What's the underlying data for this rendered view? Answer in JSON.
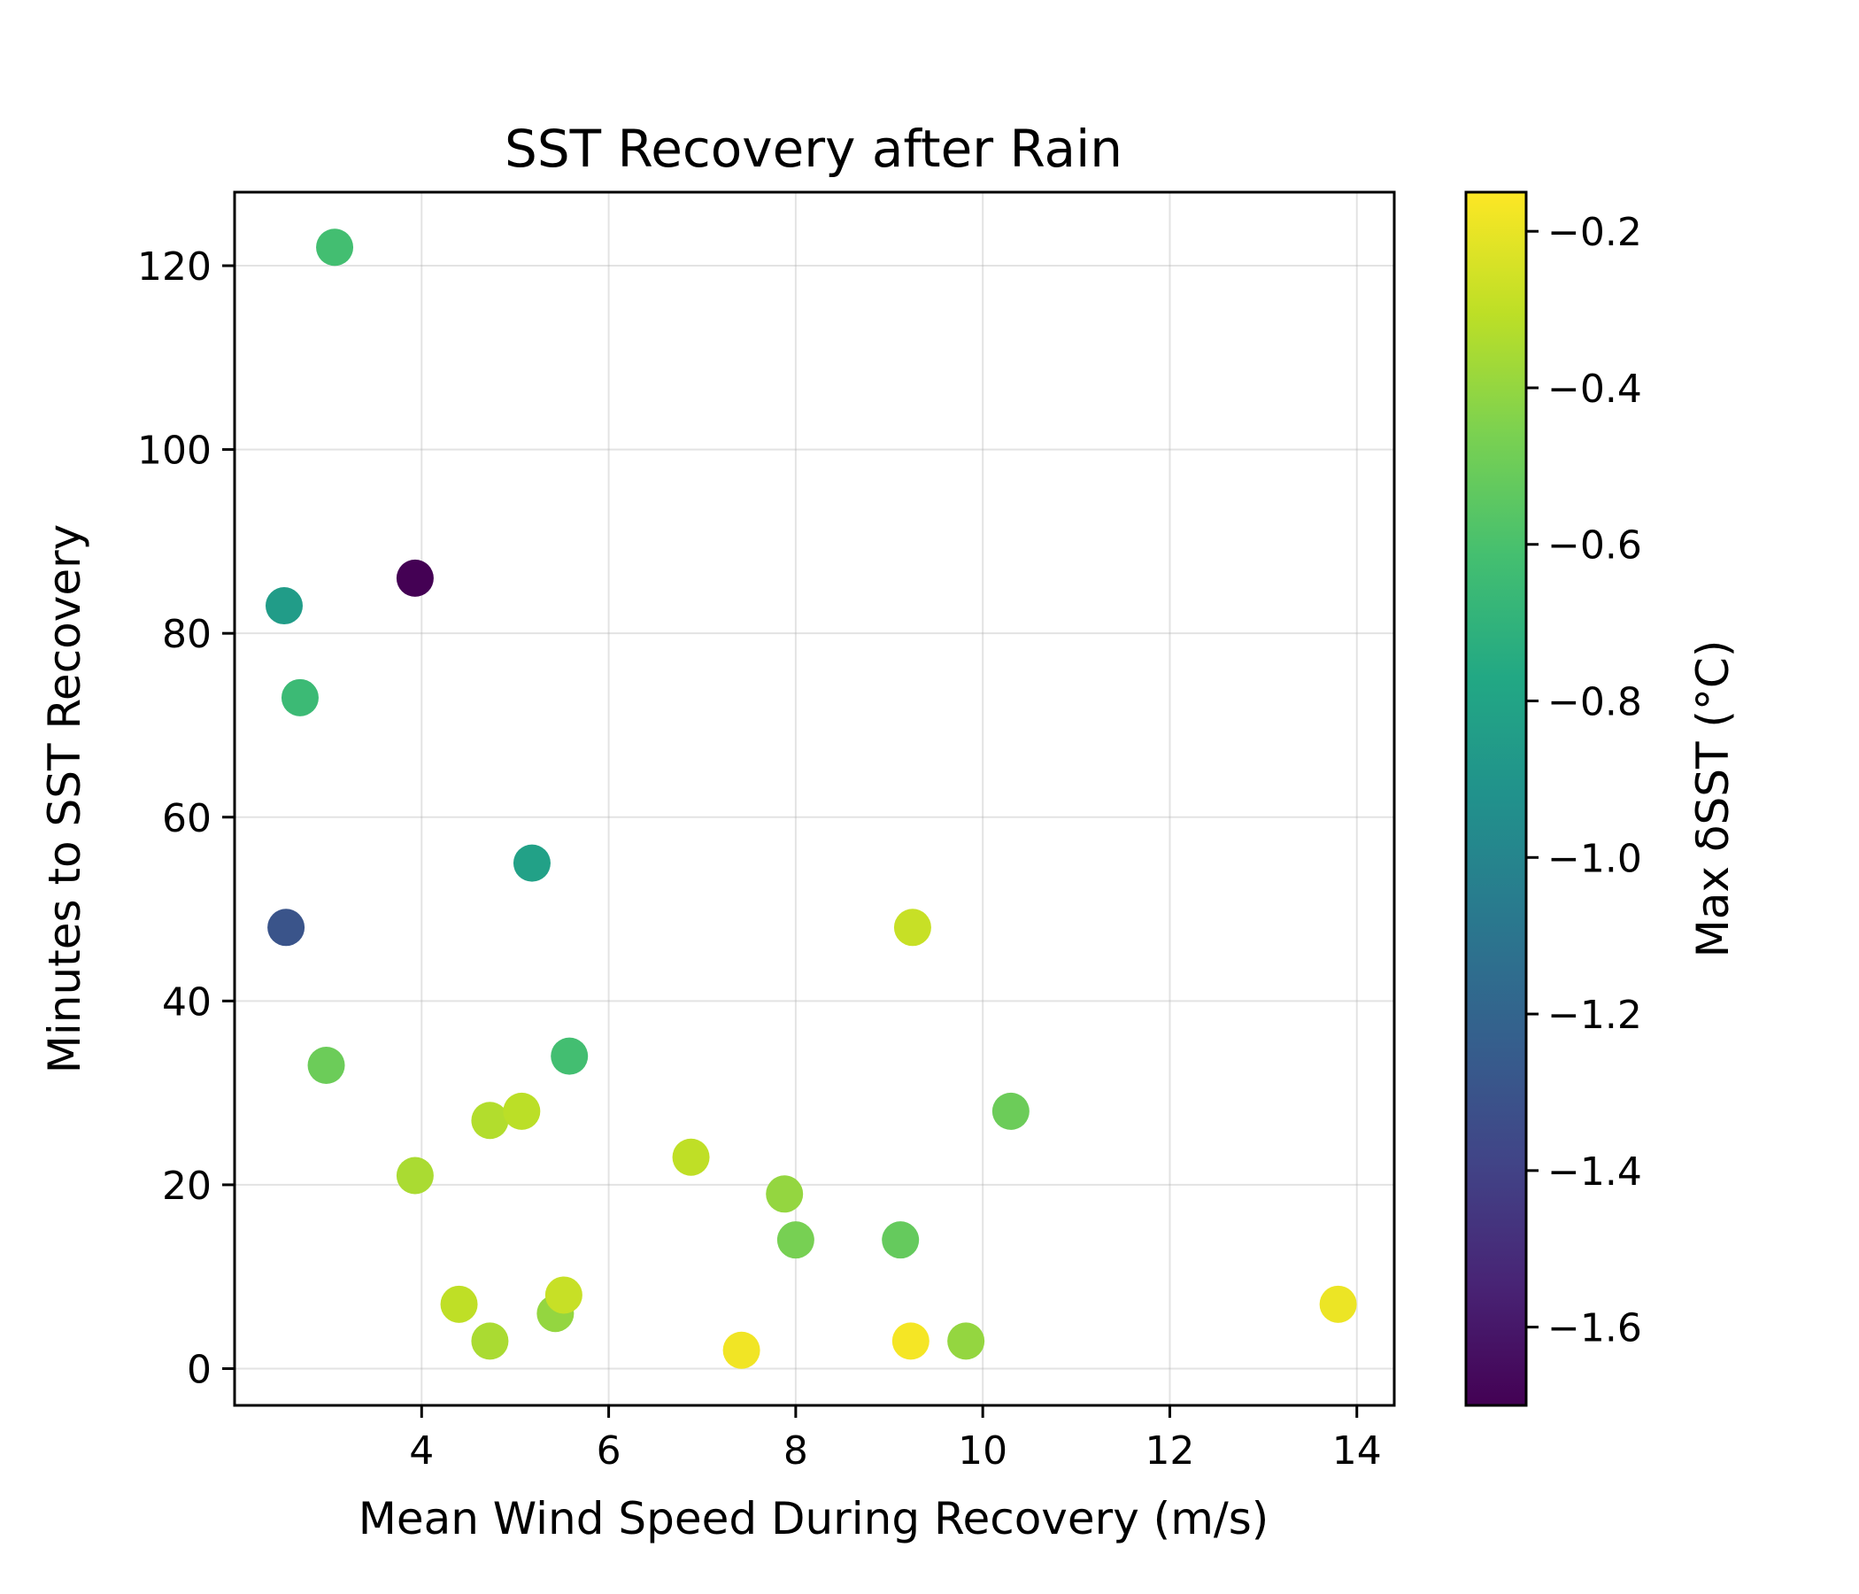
{
  "chart_data": {
    "type": "scatter",
    "title": "SST Recovery after Rain",
    "xlabel": "Mean Wind Speed During Recovery (m/s)",
    "ylabel": "Minutes to SST Recovery",
    "xlim": [
      2.0,
      14.4
    ],
    "ylim": [
      -4,
      128
    ],
    "xticks": [
      4,
      6,
      8,
      10,
      12,
      14
    ],
    "yticks": [
      0,
      20,
      40,
      60,
      80,
      100,
      120
    ],
    "grid": true,
    "colorbar": {
      "label": "Max δSST (°C)",
      "colormap": "viridis",
      "range": [
        -1.7,
        -0.15
      ],
      "ticks": [
        "−0.2",
        "−0.4",
        "−0.6",
        "−0.8",
        "−1.0",
        "−1.2",
        "−1.4",
        "−1.6"
      ],
      "tick_values": [
        -0.2,
        -0.4,
        -0.6,
        -0.8,
        -1.0,
        -1.2,
        -1.4,
        -1.6
      ]
    },
    "points": [
      {
        "x": 3.07,
        "y": 122,
        "c": -0.62
      },
      {
        "x": 3.93,
        "y": 86,
        "c": -1.7
      },
      {
        "x": 2.53,
        "y": 83,
        "c": -0.85
      },
      {
        "x": 2.7,
        "y": 73,
        "c": -0.65
      },
      {
        "x": 5.18,
        "y": 55,
        "c": -0.82
      },
      {
        "x": 2.55,
        "y": 48,
        "c": -1.3
      },
      {
        "x": 9.25,
        "y": 48,
        "c": -0.28
      },
      {
        "x": 2.98,
        "y": 33,
        "c": -0.5
      },
      {
        "x": 5.58,
        "y": 34,
        "c": -0.62
      },
      {
        "x": 4.73,
        "y": 27,
        "c": -0.33
      },
      {
        "x": 5.07,
        "y": 28,
        "c": -0.31
      },
      {
        "x": 10.3,
        "y": 28,
        "c": -0.5
      },
      {
        "x": 3.93,
        "y": 21,
        "c": -0.35
      },
      {
        "x": 6.88,
        "y": 23,
        "c": -0.3
      },
      {
        "x": 7.88,
        "y": 19,
        "c": -0.4
      },
      {
        "x": 8.0,
        "y": 14,
        "c": -0.47
      },
      {
        "x": 9.12,
        "y": 14,
        "c": -0.52
      },
      {
        "x": 4.4,
        "y": 7,
        "c": -0.3
      },
      {
        "x": 5.43,
        "y": 6,
        "c": -0.4
      },
      {
        "x": 5.52,
        "y": 8,
        "c": -0.28
      },
      {
        "x": 4.73,
        "y": 3,
        "c": -0.35
      },
      {
        "x": 7.42,
        "y": 2,
        "c": -0.18
      },
      {
        "x": 9.23,
        "y": 3,
        "c": -0.17
      },
      {
        "x": 9.82,
        "y": 3,
        "c": -0.4
      },
      {
        "x": 13.8,
        "y": 7,
        "c": -0.19
      }
    ]
  }
}
